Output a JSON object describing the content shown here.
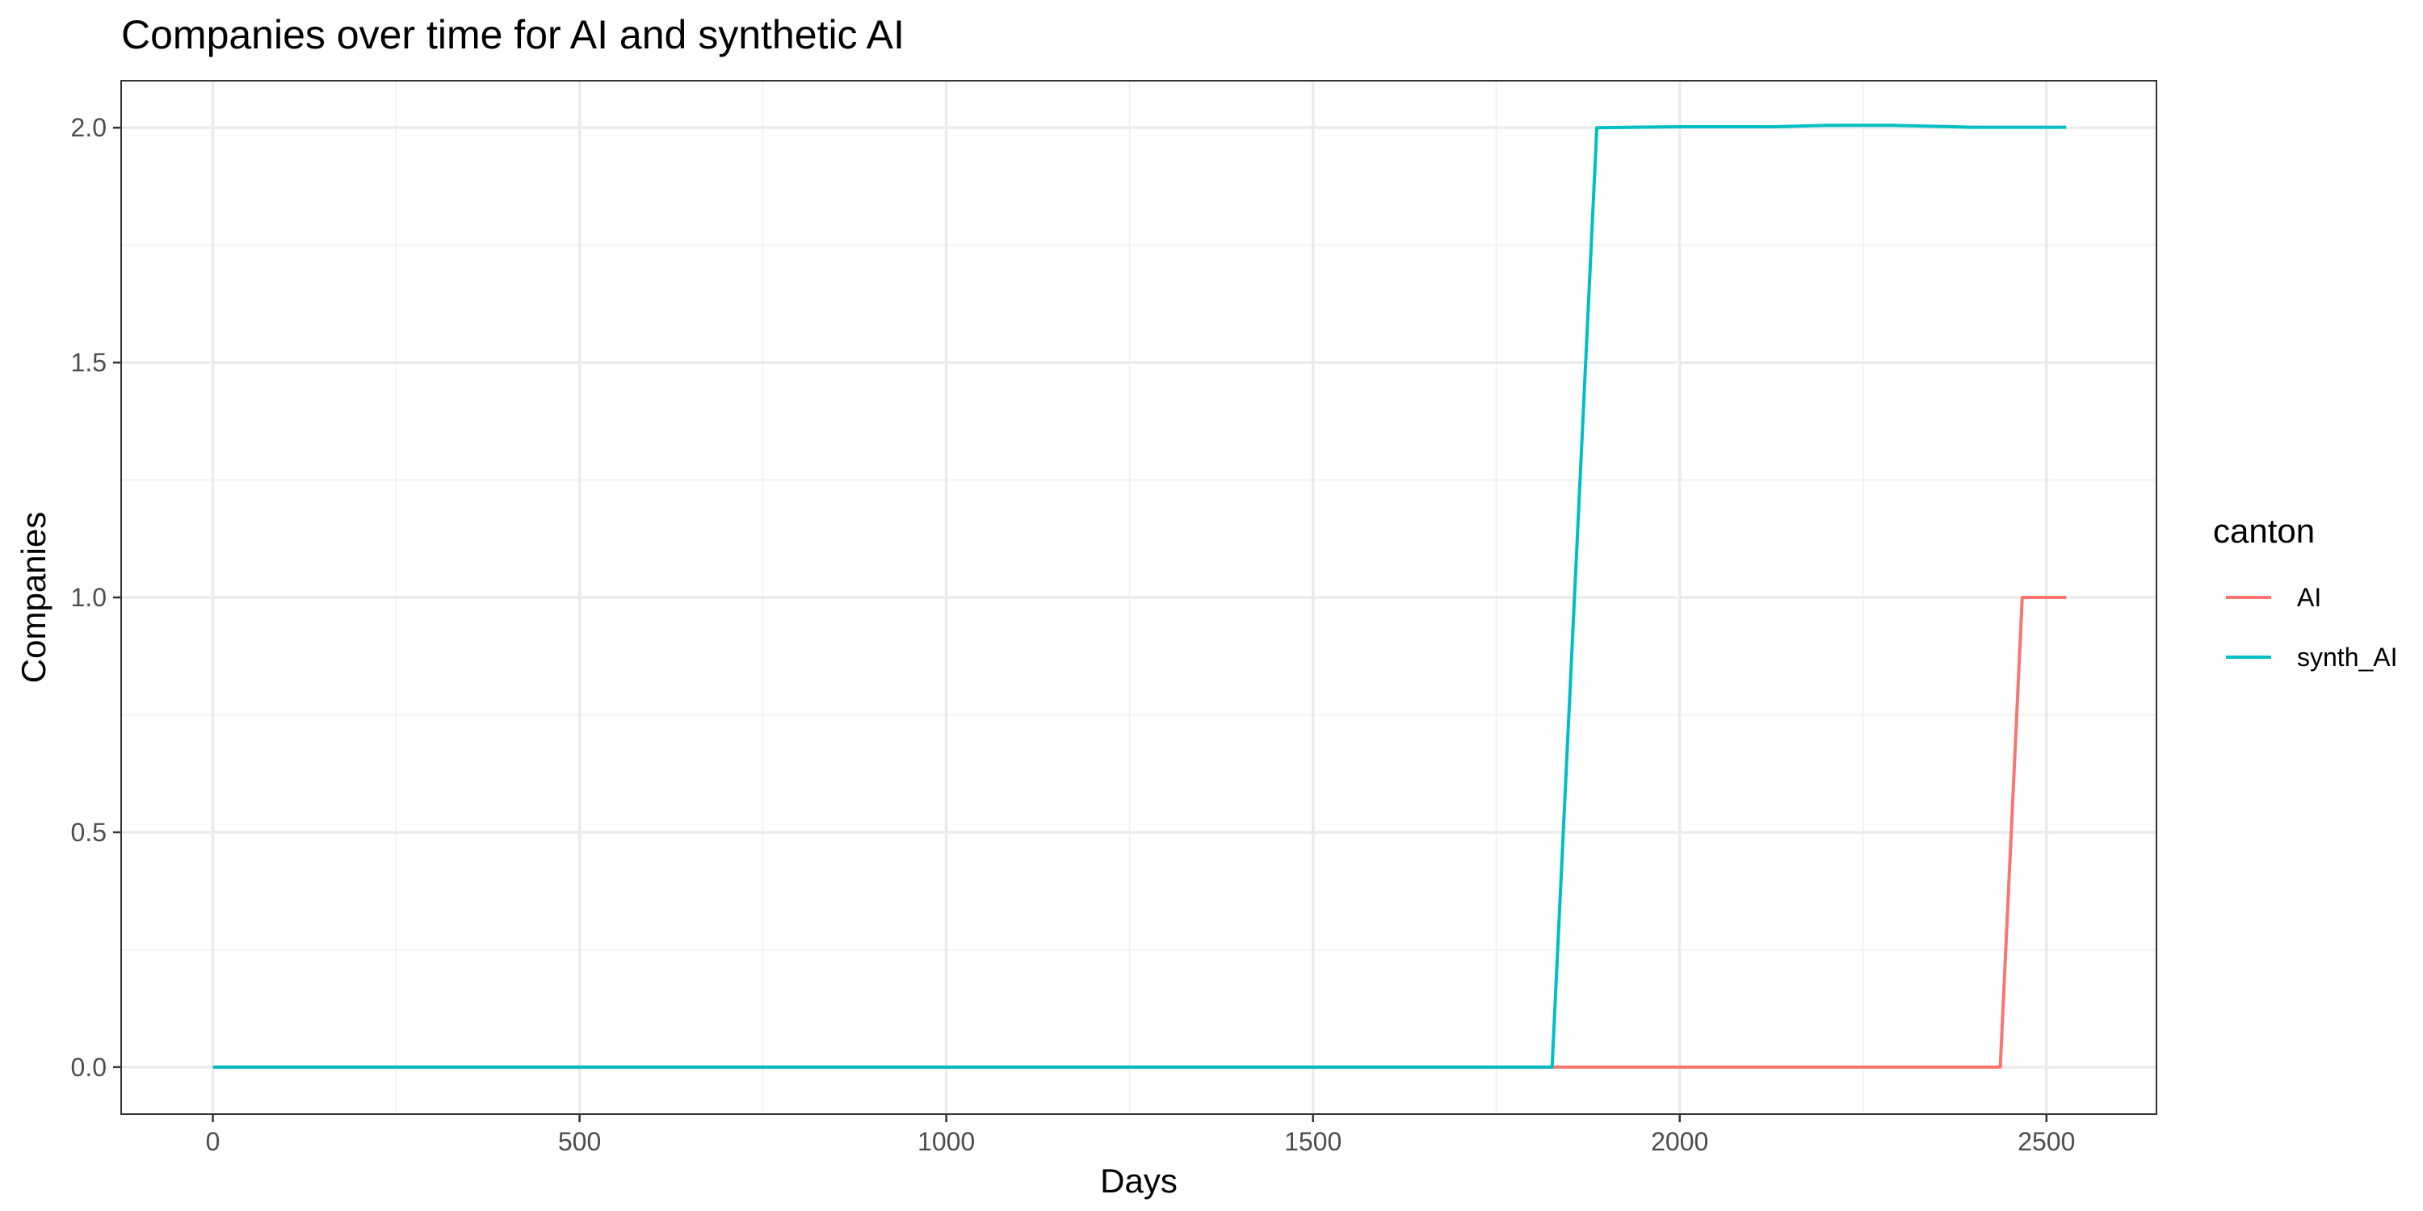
{
  "chart_data": {
    "type": "line",
    "title": "Companies over time for AI and synthetic AI",
    "xlabel": "Days",
    "ylabel": "Companies",
    "xlim": [
      -125,
      2650
    ],
    "ylim": [
      -0.1,
      2.1
    ],
    "xticks": [
      0,
      500,
      1000,
      1500,
      2000,
      2500
    ],
    "xtick_labels": [
      "0",
      "500",
      "1000",
      "1500",
      "2000",
      "2500"
    ],
    "yticks": [
      0,
      0.5,
      1,
      1.5,
      2
    ],
    "ytick_labels": [
      "0.0",
      "0.5",
      "1.0",
      "1.5",
      "2.0"
    ],
    "grid": true,
    "legend": {
      "title": "canton",
      "placement": "right"
    },
    "series": [
      {
        "name": "AI",
        "color": "#F8766D",
        "x": [
          0,
          1826,
          2437,
          2467,
          2527
        ],
        "y": [
          0,
          0,
          0,
          1,
          1
        ]
      },
      {
        "name": "synth_AI",
        "color": "#00BFC4",
        "x": [
          0,
          1826,
          1887,
          2000,
          2130,
          2200,
          2290,
          2400,
          2527
        ],
        "y": [
          0,
          0,
          2.0,
          2.002,
          2.002,
          2.005,
          2.005,
          2.001,
          2.001
        ]
      }
    ]
  }
}
